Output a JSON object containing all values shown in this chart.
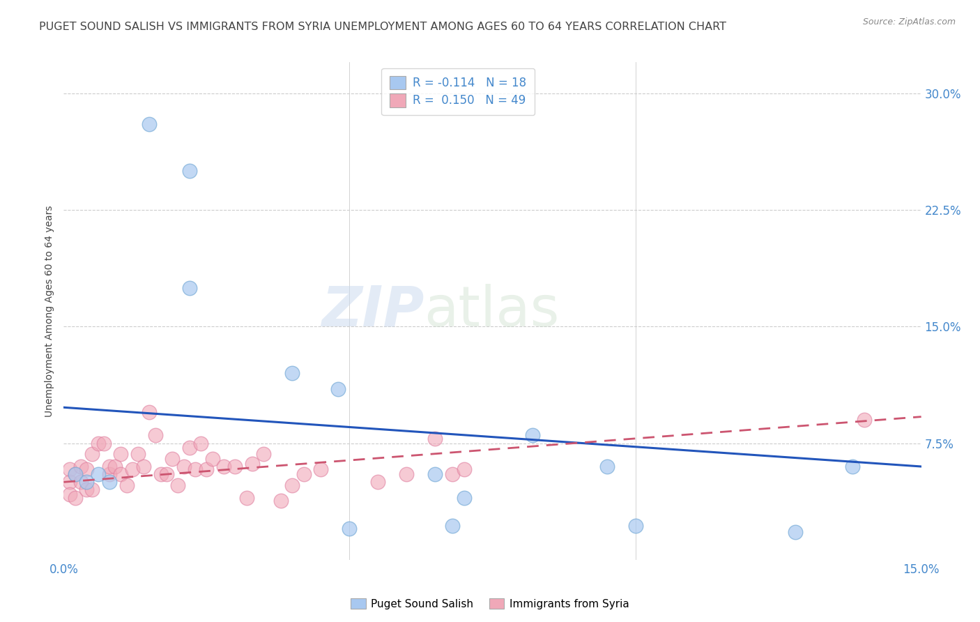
{
  "title": "PUGET SOUND SALISH VS IMMIGRANTS FROM SYRIA UNEMPLOYMENT AMONG AGES 60 TO 64 YEARS CORRELATION CHART",
  "source": "Source: ZipAtlas.com",
  "ylabel": "Unemployment Among Ages 60 to 64 years",
  "xlim": [
    0,
    0.15
  ],
  "ylim": [
    0,
    0.32
  ],
  "ytick_labels_right": [
    "7.5%",
    "15.0%",
    "22.5%",
    "30.0%"
  ],
  "yticks_right": [
    0.075,
    0.15,
    0.225,
    0.3
  ],
  "watermark_zip": "ZIP",
  "watermark_atlas": "atlas",
  "legend_line1": "R = -0.114   N = 18",
  "legend_line2": "R =  0.150   N = 49",
  "series1_name": "Puget Sound Salish",
  "series2_name": "Immigrants from Syria",
  "series1_color": "#a8c8f0",
  "series2_color": "#f0a8b8",
  "series1_edge": "#7aadd8",
  "series2_edge": "#e080a0",
  "series1_R": -0.114,
  "series2_R": 0.15,
  "series1_N": 18,
  "series2_N": 49,
  "series1_x": [
    0.015,
    0.022,
    0.022,
    0.04,
    0.048,
    0.065,
    0.068,
    0.07,
    0.082,
    0.095,
    0.1,
    0.128,
    0.138,
    0.002,
    0.004,
    0.006,
    0.008,
    0.05
  ],
  "series1_y": [
    0.28,
    0.25,
    0.175,
    0.12,
    0.11,
    0.055,
    0.022,
    0.04,
    0.08,
    0.06,
    0.022,
    0.018,
    0.06,
    0.055,
    0.05,
    0.055,
    0.05,
    0.02
  ],
  "series2_x": [
    0.001,
    0.001,
    0.001,
    0.002,
    0.002,
    0.003,
    0.003,
    0.004,
    0.004,
    0.005,
    0.005,
    0.006,
    0.007,
    0.008,
    0.008,
    0.009,
    0.01,
    0.01,
    0.011,
    0.012,
    0.013,
    0.014,
    0.015,
    0.016,
    0.017,
    0.018,
    0.019,
    0.02,
    0.021,
    0.022,
    0.023,
    0.024,
    0.025,
    0.026,
    0.028,
    0.03,
    0.032,
    0.033,
    0.035,
    0.038,
    0.04,
    0.042,
    0.045,
    0.055,
    0.06,
    0.065,
    0.068,
    0.07,
    0.14
  ],
  "series2_y": [
    0.058,
    0.05,
    0.042,
    0.055,
    0.04,
    0.06,
    0.05,
    0.058,
    0.045,
    0.068,
    0.045,
    0.075,
    0.075,
    0.055,
    0.06,
    0.06,
    0.055,
    0.068,
    0.048,
    0.058,
    0.068,
    0.06,
    0.095,
    0.08,
    0.055,
    0.055,
    0.065,
    0.048,
    0.06,
    0.072,
    0.058,
    0.075,
    0.058,
    0.065,
    0.06,
    0.06,
    0.04,
    0.062,
    0.068,
    0.038,
    0.048,
    0.055,
    0.058,
    0.05,
    0.055,
    0.078,
    0.055,
    0.058,
    0.09
  ],
  "trend1_x0": 0.0,
  "trend1_x1": 0.15,
  "trend1_y0": 0.098,
  "trend1_y1": 0.06,
  "trend2_x0": 0.0,
  "trend2_x1": 0.15,
  "trend2_y0": 0.05,
  "trend2_y1": 0.092,
  "background_color": "#ffffff",
  "title_color": "#444444",
  "axis_color": "#4488cc",
  "grid_color": "#cccccc",
  "title_fontsize": 11.5,
  "ylabel_fontsize": 10,
  "tick_fontsize": 12
}
